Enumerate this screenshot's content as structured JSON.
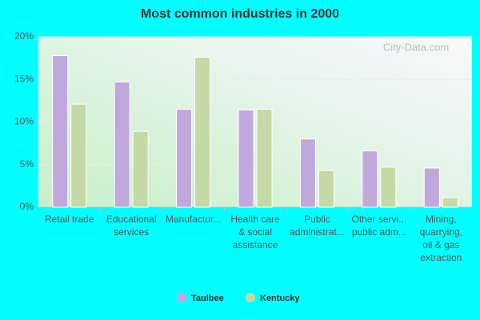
{
  "chart_data": {
    "type": "bar",
    "title": "Most common industries in 2000",
    "watermark": "City-Data.com",
    "categories": [
      "Retail trade",
      "Educational\nservices",
      "Manufactur...",
      "Health care\n& social\nassistance",
      "Public\nadministrat...",
      "Other servi...\npublic adm...",
      "Mining,\nquarrying,\noil & gas\nextraction"
    ],
    "series": [
      {
        "name": "Taulbee",
        "color": "#c0a8dc",
        "values": [
          17.8,
          14.7,
          11.5,
          11.4,
          8.0,
          6.6,
          4.6
        ]
      },
      {
        "name": "Kentucky",
        "color": "#c5d9a5",
        "values": [
          12.1,
          8.9,
          17.6,
          11.5,
          4.3,
          4.7,
          1.1
        ]
      }
    ],
    "ylim": [
      0,
      20
    ],
    "yticks": [
      {
        "value": 0,
        "label": "0%"
      },
      {
        "value": 5,
        "label": "5%"
      },
      {
        "value": 10,
        "label": "10%"
      },
      {
        "value": 15,
        "label": "15%"
      },
      {
        "value": 20,
        "label": "20%"
      }
    ],
    "grid": true,
    "legend": "bottom"
  }
}
